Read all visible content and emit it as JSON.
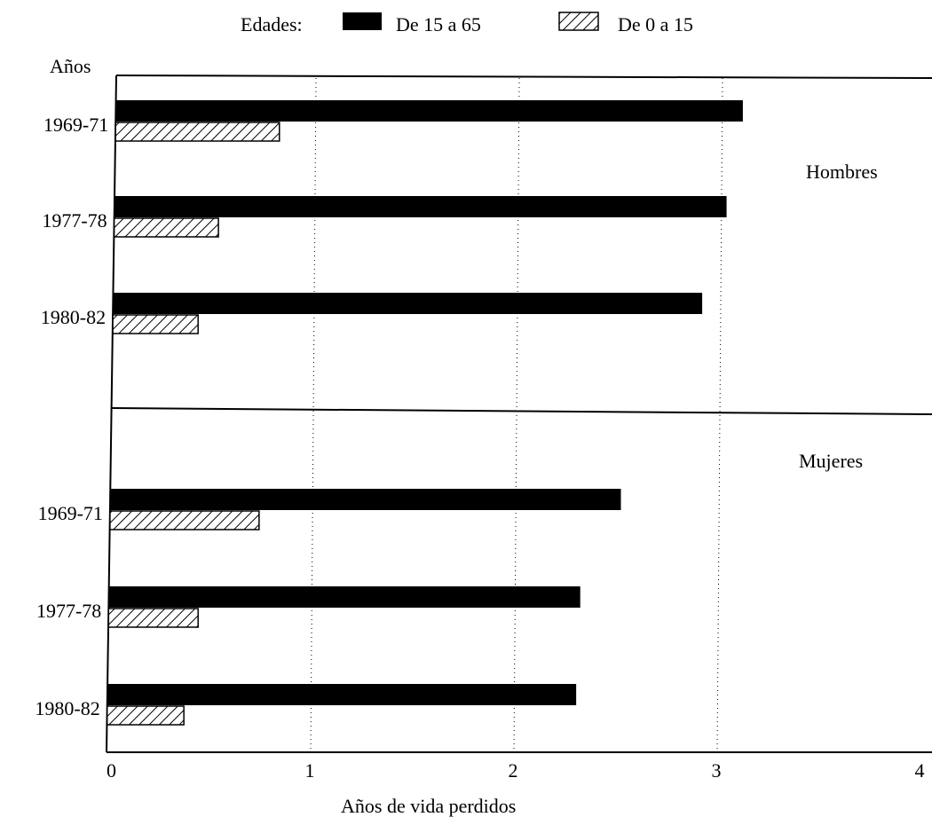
{
  "chart_data": {
    "type": "bar",
    "orientation": "horizontal",
    "legend_title": "Edades:",
    "legend_position": "top",
    "series": [
      {
        "name": "De 15 a 65",
        "style": "solid",
        "color": "#000000"
      },
      {
        "name": "De 0 a 15",
        "style": "hatched",
        "color": "#000000"
      }
    ],
    "y_axis_title": "Años",
    "xlabel": "Años de vida perdidos",
    "xlim": [
      0,
      4
    ],
    "xticks": [
      "0",
      "1",
      "2",
      "3",
      "4"
    ],
    "grid": "vertical dotted",
    "panels": [
      {
        "label": "Hombres",
        "categories": [
          "1969-71",
          "1977-78",
          "1980-82"
        ],
        "values": {
          "De 15 a 65": [
            3.1,
            3.02,
            2.9
          ],
          "De 0 a 15": [
            0.82,
            0.52,
            0.42
          ]
        }
      },
      {
        "label": "Mujeres",
        "categories": [
          "1969-71",
          "1977-78",
          "1980-82"
        ],
        "values": {
          "De 15 a 65": [
            2.5,
            2.3,
            2.28
          ],
          "De 0 a 15": [
            0.72,
            0.42,
            0.35
          ]
        }
      }
    ]
  }
}
